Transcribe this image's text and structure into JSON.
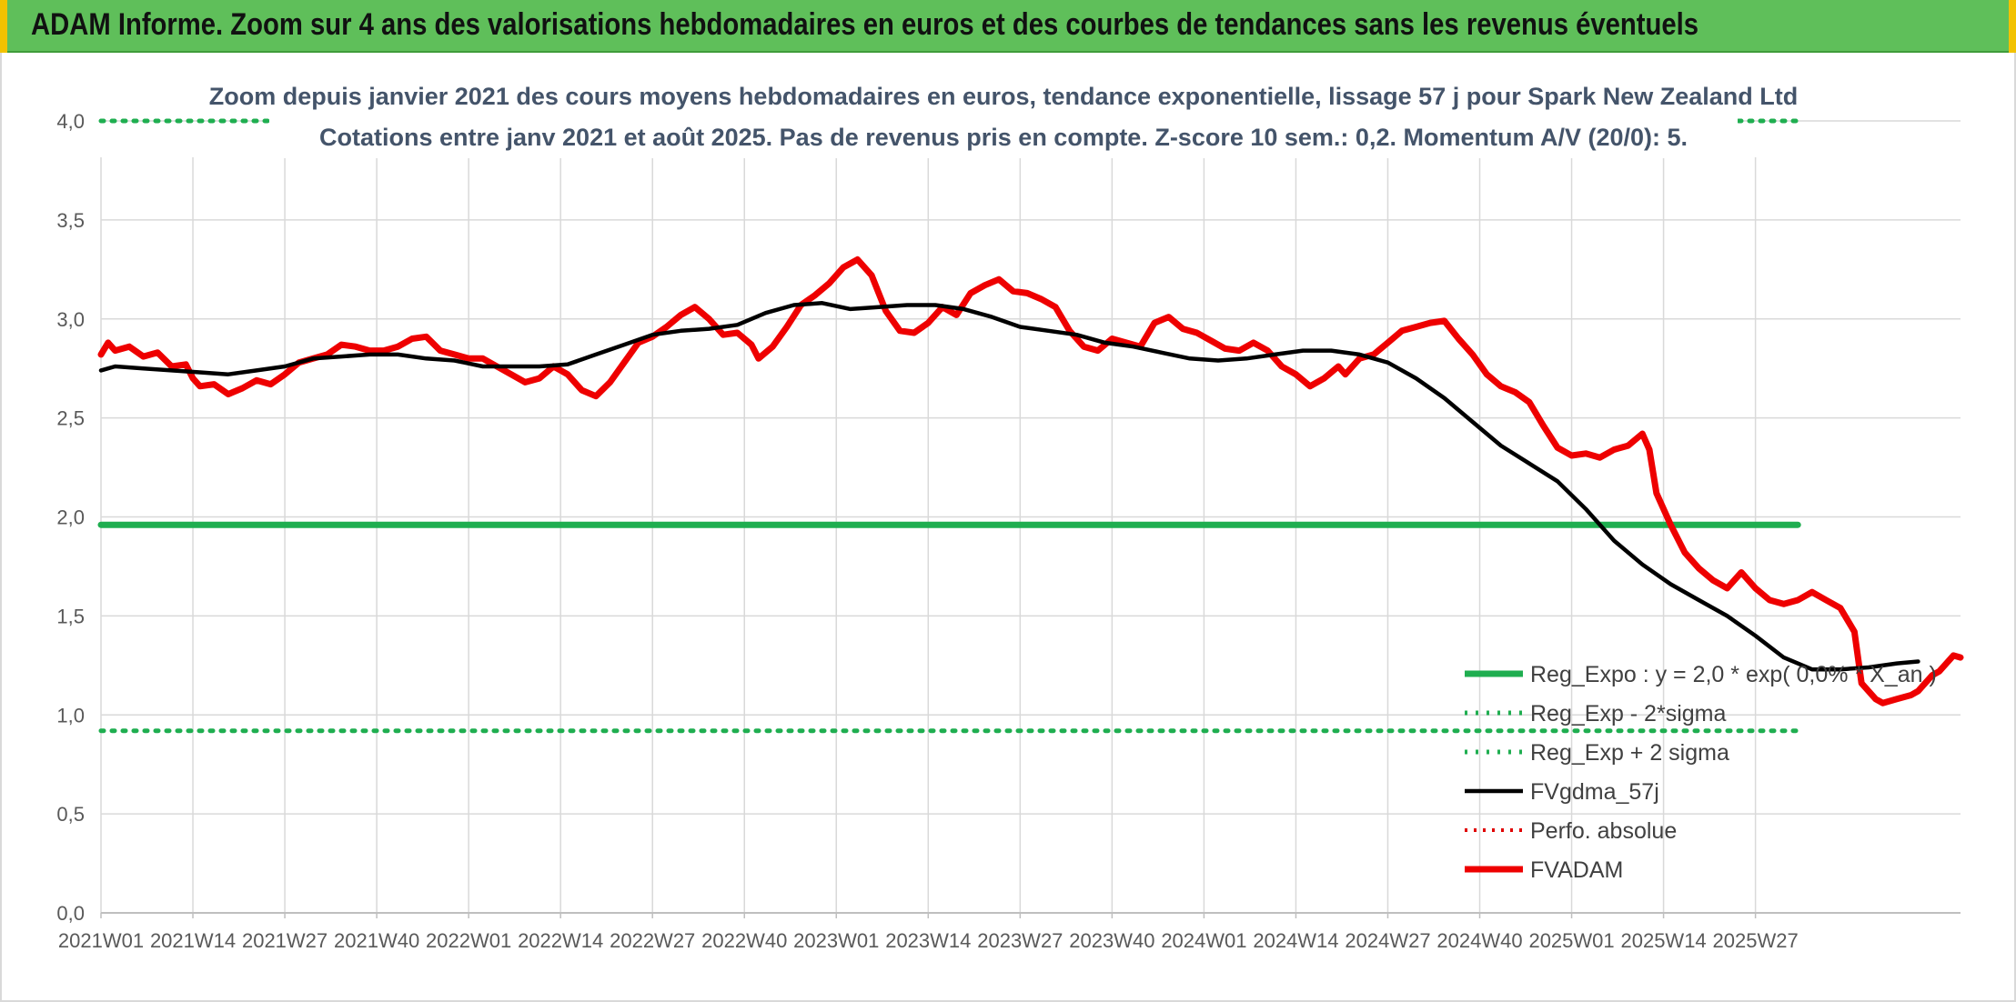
{
  "header": {
    "title": "ADAM Informe. Zoom sur 4 ans des valorisations hebdomadaires en euros et des courbes de tendances sans les revenus éventuels"
  },
  "colors": {
    "header_bg": "#5fbf5a",
    "reg_expo": "#1fae50",
    "fvgdma": "#000000",
    "perfo": "#e00000",
    "fvadam": "#ee0000"
  },
  "chart_data": {
    "type": "line",
    "title": "Zoom depuis janvier 2021 des cours moyens hebdomadaires en euros, tendance exponentielle, lissage 57 j pour Spark New Zealand Ltd",
    "subtitle": "Cotations entre janv 2021 et août 2025. Pas de revenus pris en compte. Z-score 10 sem.: 0,2. Momentum A/V (20/0): 5.",
    "ylim": [
      0,
      4
    ],
    "yticks": [
      "0,0",
      "0,5",
      "1,0",
      "1,5",
      "2,0",
      "2,5",
      "3,0",
      "3,5",
      "4,0"
    ],
    "xticks": [
      "2021W01",
      "2021W14",
      "2021W27",
      "2021W40",
      "2022W01",
      "2022W14",
      "2022W27",
      "2022W40",
      "2023W01",
      "2023W14",
      "2023W27",
      "2023W40",
      "2024W01",
      "2024W14",
      "2024W27",
      "2024W40",
      "2025W01",
      "2025W14",
      "2025W27"
    ],
    "grid": true,
    "legend_position": "bottom-right",
    "series": [
      {
        "name": "Reg_Expo : y = 2,0 * exp( 0,0% * X_an )",
        "style": "solid-thick",
        "values": [
          [
            0,
            1.96
          ],
          [
            240,
            1.96
          ]
        ]
      },
      {
        "name": "Reg_Exp - 2*sigma",
        "style": "dotted",
        "values": [
          [
            0,
            0.92
          ],
          [
            240,
            0.92
          ]
        ]
      },
      {
        "name": "Reg_Exp + 2 sigma",
        "style": "dotted",
        "values": [
          [
            0,
            4.0
          ],
          [
            240,
            4.0
          ]
        ]
      },
      {
        "name": "FVgdma_57j",
        "style": "solid",
        "values": [
          [
            0,
            2.74
          ],
          [
            2,
            2.76
          ],
          [
            6,
            2.75
          ],
          [
            10,
            2.74
          ],
          [
            14,
            2.73
          ],
          [
            18,
            2.72
          ],
          [
            22,
            2.74
          ],
          [
            26,
            2.76
          ],
          [
            30,
            2.8
          ],
          [
            34,
            2.81
          ],
          [
            38,
            2.82
          ],
          [
            42,
            2.82
          ],
          [
            46,
            2.8
          ],
          [
            50,
            2.79
          ],
          [
            54,
            2.76
          ],
          [
            58,
            2.76
          ],
          [
            62,
            2.76
          ],
          [
            66,
            2.77
          ],
          [
            70,
            2.82
          ],
          [
            74,
            2.87
          ],
          [
            78,
            2.92
          ],
          [
            82,
            2.94
          ],
          [
            86,
            2.95
          ],
          [
            90,
            2.97
          ],
          [
            94,
            3.03
          ],
          [
            98,
            3.07
          ],
          [
            102,
            3.08
          ],
          [
            106,
            3.05
          ],
          [
            110,
            3.06
          ],
          [
            114,
            3.07
          ],
          [
            118,
            3.07
          ],
          [
            122,
            3.05
          ],
          [
            126,
            3.01
          ],
          [
            130,
            2.96
          ],
          [
            134,
            2.94
          ],
          [
            138,
            2.92
          ],
          [
            142,
            2.88
          ],
          [
            146,
            2.86
          ],
          [
            150,
            2.83
          ],
          [
            154,
            2.8
          ],
          [
            158,
            2.79
          ],
          [
            162,
            2.8
          ],
          [
            166,
            2.82
          ],
          [
            170,
            2.84
          ],
          [
            174,
            2.84
          ],
          [
            178,
            2.82
          ],
          [
            182,
            2.78
          ],
          [
            186,
            2.7
          ],
          [
            190,
            2.6
          ],
          [
            194,
            2.48
          ],
          [
            198,
            2.36
          ],
          [
            202,
            2.27
          ],
          [
            206,
            2.18
          ],
          [
            210,
            2.04
          ],
          [
            214,
            1.88
          ],
          [
            218,
            1.76
          ],
          [
            222,
            1.66
          ],
          [
            226,
            1.58
          ],
          [
            230,
            1.5
          ],
          [
            234,
            1.4
          ],
          [
            238,
            1.29
          ],
          [
            242,
            1.23
          ],
          [
            246,
            1.23
          ],
          [
            250,
            1.24
          ],
          [
            254,
            1.26
          ],
          [
            257,
            1.27
          ]
        ]
      },
      {
        "name": "Perfo. absolue",
        "style": "dotted",
        "values": []
      },
      {
        "name": "FVADAM",
        "style": "solid-thick",
        "values": [
          [
            0,
            2.82
          ],
          [
            1,
            2.88
          ],
          [
            2,
            2.84
          ],
          [
            4,
            2.86
          ],
          [
            6,
            2.81
          ],
          [
            8,
            2.83
          ],
          [
            10,
            2.76
          ],
          [
            12,
            2.77
          ],
          [
            13,
            2.7
          ],
          [
            14,
            2.66
          ],
          [
            16,
            2.67
          ],
          [
            18,
            2.62
          ],
          [
            20,
            2.65
          ],
          [
            22,
            2.69
          ],
          [
            24,
            2.67
          ],
          [
            26,
            2.72
          ],
          [
            28,
            2.78
          ],
          [
            30,
            2.8
          ],
          [
            32,
            2.82
          ],
          [
            34,
            2.87
          ],
          [
            36,
            2.86
          ],
          [
            38,
            2.84
          ],
          [
            40,
            2.84
          ],
          [
            42,
            2.86
          ],
          [
            44,
            2.9
          ],
          [
            46,
            2.91
          ],
          [
            48,
            2.84
          ],
          [
            50,
            2.82
          ],
          [
            52,
            2.8
          ],
          [
            54,
            2.8
          ],
          [
            56,
            2.76
          ],
          [
            58,
            2.72
          ],
          [
            60,
            2.68
          ],
          [
            62,
            2.7
          ],
          [
            64,
            2.76
          ],
          [
            66,
            2.72
          ],
          [
            68,
            2.64
          ],
          [
            70,
            2.61
          ],
          [
            72,
            2.68
          ],
          [
            74,
            2.78
          ],
          [
            76,
            2.88
          ],
          [
            78,
            2.91
          ],
          [
            80,
            2.96
          ],
          [
            82,
            3.02
          ],
          [
            84,
            3.06
          ],
          [
            86,
            3.0
          ],
          [
            88,
            2.92
          ],
          [
            90,
            2.93
          ],
          [
            92,
            2.87
          ],
          [
            93,
            2.8
          ],
          [
            95,
            2.86
          ],
          [
            97,
            2.96
          ],
          [
            99,
            3.07
          ],
          [
            101,
            3.12
          ],
          [
            103,
            3.18
          ],
          [
            105,
            3.26
          ],
          [
            107,
            3.3
          ],
          [
            109,
            3.22
          ],
          [
            111,
            3.04
          ],
          [
            113,
            2.94
          ],
          [
            115,
            2.93
          ],
          [
            117,
            2.98
          ],
          [
            119,
            3.06
          ],
          [
            121,
            3.02
          ],
          [
            123,
            3.13
          ],
          [
            125,
            3.17
          ],
          [
            127,
            3.2
          ],
          [
            129,
            3.14
          ],
          [
            131,
            3.13
          ],
          [
            133,
            3.1
          ],
          [
            135,
            3.06
          ],
          [
            137,
            2.94
          ],
          [
            139,
            2.86
          ],
          [
            141,
            2.84
          ],
          [
            143,
            2.9
          ],
          [
            145,
            2.88
          ],
          [
            147,
            2.86
          ],
          [
            149,
            2.98
          ],
          [
            151,
            3.01
          ],
          [
            153,
            2.95
          ],
          [
            155,
            2.93
          ],
          [
            157,
            2.89
          ],
          [
            159,
            2.85
          ],
          [
            161,
            2.84
          ],
          [
            163,
            2.88
          ],
          [
            165,
            2.84
          ],
          [
            167,
            2.76
          ],
          [
            169,
            2.72
          ],
          [
            171,
            2.66
          ],
          [
            173,
            2.7
          ],
          [
            175,
            2.76
          ],
          [
            176,
            2.72
          ],
          [
            178,
            2.8
          ],
          [
            180,
            2.82
          ],
          [
            182,
            2.88
          ],
          [
            184,
            2.94
          ],
          [
            186,
            2.96
          ],
          [
            188,
            2.98
          ],
          [
            190,
            2.99
          ],
          [
            192,
            2.9
          ],
          [
            194,
            2.82
          ],
          [
            196,
            2.72
          ],
          [
            198,
            2.66
          ],
          [
            200,
            2.63
          ],
          [
            202,
            2.58
          ],
          [
            204,
            2.46
          ],
          [
            206,
            2.35
          ],
          [
            208,
            2.31
          ],
          [
            210,
            2.32
          ],
          [
            212,
            2.3
          ],
          [
            214,
            2.34
          ],
          [
            216,
            2.36
          ],
          [
            218,
            2.42
          ],
          [
            219,
            2.34
          ],
          [
            220,
            2.12
          ],
          [
            222,
            1.96
          ],
          [
            224,
            1.82
          ],
          [
            226,
            1.74
          ],
          [
            228,
            1.68
          ],
          [
            230,
            1.64
          ],
          [
            232,
            1.72
          ],
          [
            234,
            1.64
          ],
          [
            236,
            1.58
          ],
          [
            238,
            1.56
          ],
          [
            240,
            1.58
          ],
          [
            242,
            1.62
          ],
          [
            244,
            1.58
          ],
          [
            246,
            1.54
          ],
          [
            248,
            1.42
          ],
          [
            249,
            1.16
          ],
          [
            251,
            1.08
          ],
          [
            252,
            1.06
          ],
          [
            254,
            1.08
          ],
          [
            256,
            1.1
          ],
          [
            257,
            1.12
          ],
          [
            258,
            1.16
          ],
          [
            259,
            1.2
          ],
          [
            260,
            1.22
          ],
          [
            261,
            1.26
          ],
          [
            262,
            1.3
          ],
          [
            263,
            1.29
          ]
        ]
      }
    ],
    "x_note": "x values are week indices from 2021W01 (0) to 2025W33 (~240)"
  }
}
